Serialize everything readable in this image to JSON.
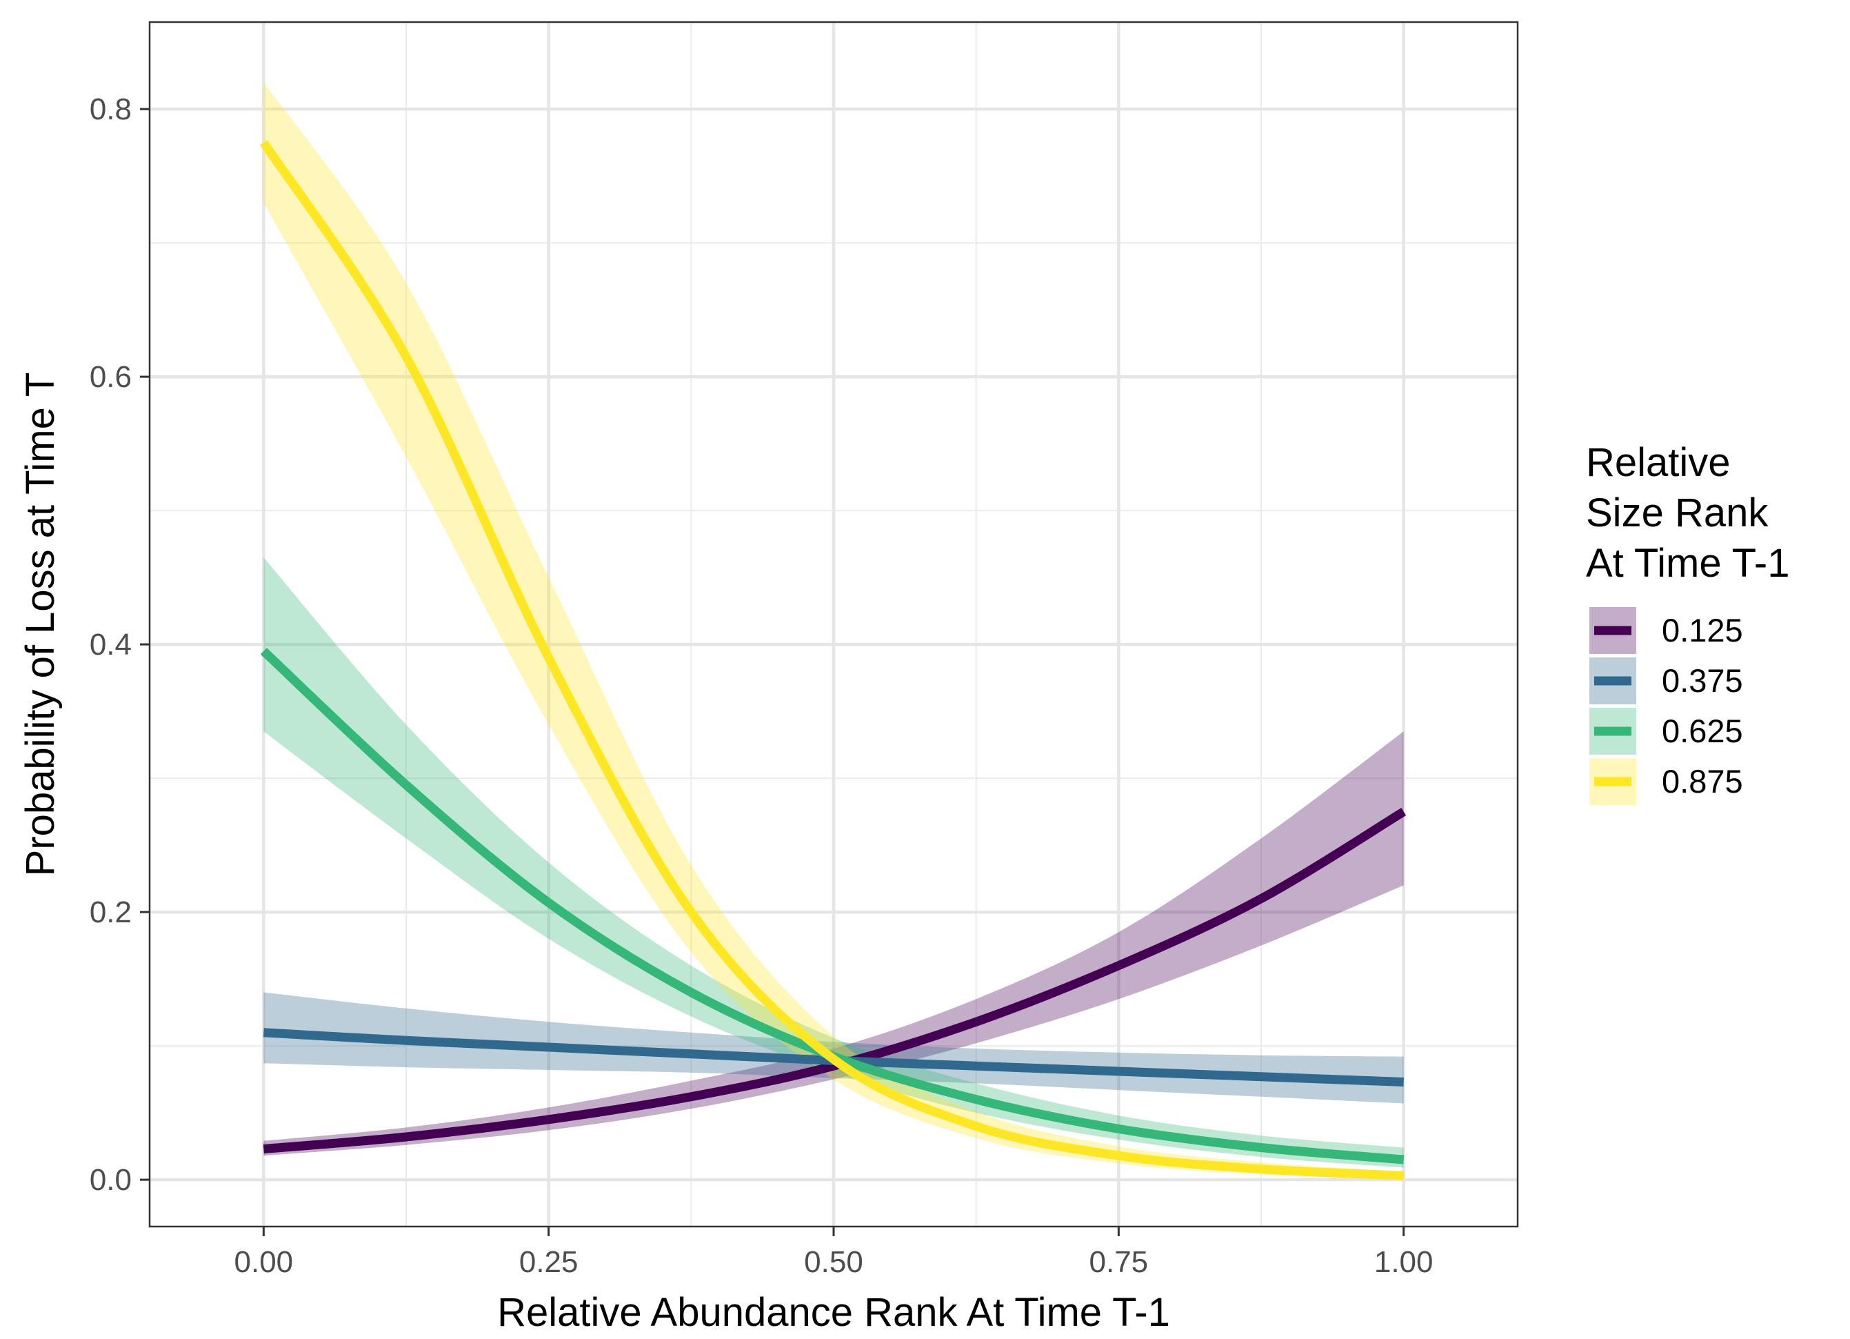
{
  "chart_data": {
    "type": "line",
    "title": "",
    "xlabel": "Relative Abundance Rank At Time T-1",
    "ylabel": "Probability of Loss at Time T",
    "xlim": [
      -0.1,
      1.1
    ],
    "ylim": [
      -0.035,
      0.865
    ],
    "x_ticks": [
      0.0,
      0.25,
      0.5,
      0.75,
      1.0
    ],
    "x_tick_labels": [
      "0.00",
      "0.25",
      "0.50",
      "0.75",
      "1.00"
    ],
    "y_ticks": [
      0.0,
      0.2,
      0.4,
      0.6,
      0.8
    ],
    "y_tick_labels": [
      "0.0",
      "0.2",
      "0.4",
      "0.6",
      "0.8"
    ],
    "grid": true,
    "legend": {
      "title": [
        "Relative",
        "Size Rank",
        "At Time T-1"
      ],
      "position": "right"
    },
    "x": [
      0.0,
      0.125,
      0.25,
      0.375,
      0.5,
      0.625,
      0.75,
      0.875,
      1.0
    ],
    "series": [
      {
        "name": "0.125",
        "color": "#440154",
        "values": [
          0.023,
          0.032,
          0.045,
          0.062,
          0.085,
          0.118,
          0.16,
          0.21,
          0.275
        ],
        "lower": [
          0.018,
          0.026,
          0.037,
          0.053,
          0.075,
          0.102,
          0.135,
          0.175,
          0.22
        ],
        "upper": [
          0.029,
          0.039,
          0.054,
          0.074,
          0.098,
          0.135,
          0.185,
          0.255,
          0.335
        ]
      },
      {
        "name": "0.375",
        "color": "#31688E",
        "values": [
          0.11,
          0.104,
          0.099,
          0.094,
          0.089,
          0.085,
          0.081,
          0.077,
          0.073
        ],
        "lower": [
          0.087,
          0.084,
          0.082,
          0.08,
          0.076,
          0.072,
          0.067,
          0.062,
          0.057
        ],
        "upper": [
          0.14,
          0.128,
          0.118,
          0.11,
          0.103,
          0.098,
          0.095,
          0.093,
          0.092
        ]
      },
      {
        "name": "0.625",
        "color": "#35B779",
        "values": [
          0.395,
          0.295,
          0.207,
          0.14,
          0.092,
          0.06,
          0.038,
          0.024,
          0.015
        ],
        "lower": [
          0.335,
          0.255,
          0.18,
          0.122,
          0.08,
          0.05,
          0.03,
          0.017,
          0.009
        ],
        "upper": [
          0.465,
          0.34,
          0.237,
          0.16,
          0.106,
          0.072,
          0.048,
          0.033,
          0.024
        ]
      },
      {
        "name": "0.875",
        "color": "#FDE725",
        "values": [
          0.775,
          0.615,
          0.39,
          0.2,
          0.09,
          0.04,
          0.018,
          0.008,
          0.003
        ],
        "lower": [
          0.73,
          0.54,
          0.34,
          0.17,
          0.075,
          0.031,
          0.012,
          0.004,
          0.001
        ],
        "upper": [
          0.82,
          0.67,
          0.45,
          0.235,
          0.107,
          0.051,
          0.025,
          0.013,
          0.006
        ]
      }
    ]
  }
}
